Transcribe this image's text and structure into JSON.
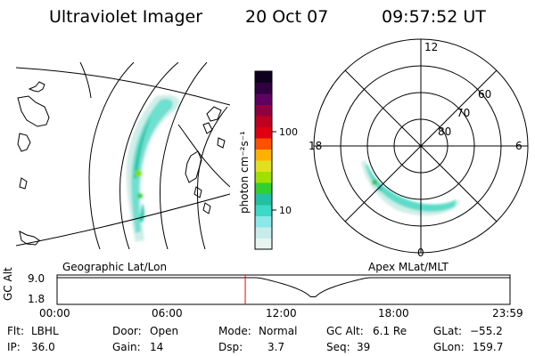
{
  "header": {
    "title": "Ultraviolet Imager",
    "date": "20 Oct 07",
    "time": "09:57:52 UT"
  },
  "colorbar": {
    "unit_label": "photon cm⁻²s⁻¹",
    "ticks": [
      "100",
      "10"
    ],
    "colors": [
      "#e8f4f0",
      "#c8ecec",
      "#8ce8e8",
      "#3cd8c8",
      "#20c0a0",
      "#30d030",
      "#a0e000",
      "#e0e020",
      "#ffb000",
      "#ff5000",
      "#e00010",
      "#c00020",
      "#900040",
      "#600060",
      "#300040",
      "#100020"
    ]
  },
  "geo_map": {
    "label": "Geographic Lat/Lon",
    "aurora_color": "#40d8c8"
  },
  "polar_plot": {
    "label": "Apex  MLat/MLT",
    "mlt_labels": {
      "top": "12",
      "right": "6",
      "left": "18",
      "bottom": "0"
    },
    "lat_labels": [
      "60",
      "70",
      "80"
    ]
  },
  "altitude_panel": {
    "ylabel": "GC Alt",
    "y_ticks": [
      "9.0",
      "1.8"
    ],
    "x_ticks": [
      "00:00",
      "06:00",
      "12:00",
      "18:00",
      "23:59"
    ],
    "current_time_marker": "09:57:52",
    "marker_color": "#ff0000"
  },
  "info": {
    "flt_label": "Flt:",
    "flt_value": "LBHL",
    "ip_label": "IP:",
    "ip_value": "36.0",
    "door_label": "Door:",
    "door_value": "Open",
    "gain_label": "Gain:",
    "gain_value": "14",
    "mode_label": "Mode:",
    "mode_value": "Normal",
    "dsp_label": "Dsp:",
    "dsp_value": "3.7",
    "gcalt_label": "GC Alt:",
    "gcalt_value": "6.1 Re",
    "seq_label": "Seq:",
    "seq_value": "39",
    "glat_label": "GLat:",
    "glat_value": "−55.2",
    "glon_label": "GLon:",
    "glon_value": "159.7"
  }
}
